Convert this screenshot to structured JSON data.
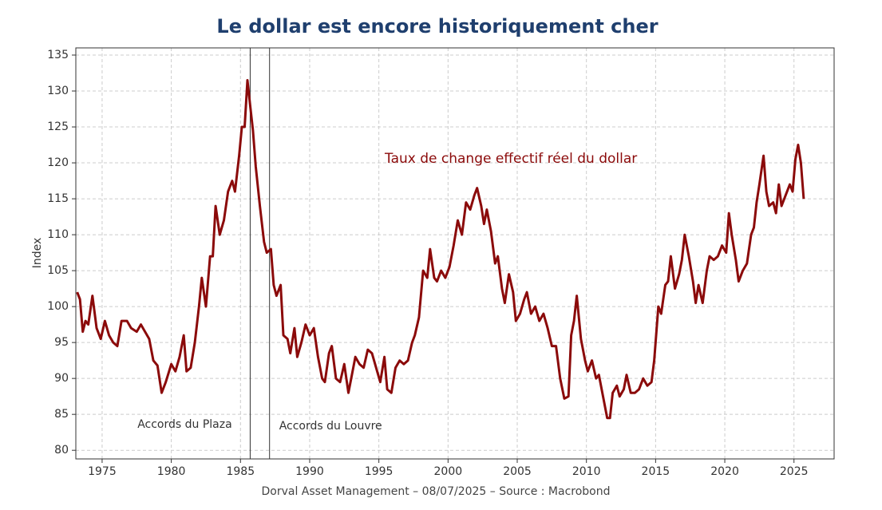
{
  "chart_data": {
    "type": "line",
    "title": "Le dollar est encore historiquement cher",
    "ylabel": "Index",
    "footer": "Dorval Asset Management  – 08/07/2025 –   Source : Macrobond",
    "annotations": [
      {
        "text": "Accords du Plaza",
        "x": 1985.7
      },
      {
        "text": "Accords du Louvre",
        "x": 1987.1
      }
    ],
    "xlim": [
      1973.1,
      2027.9
    ],
    "xticks": [
      1975,
      1980,
      1985,
      1990,
      1995,
      2000,
      2005,
      2010,
      2015,
      2020,
      2025
    ],
    "ylim": [
      78.8,
      136
    ],
    "yticks": [
      80,
      85,
      90,
      95,
      100,
      105,
      110,
      115,
      120,
      125,
      130,
      135
    ],
    "grid": true,
    "series": [
      {
        "name": "Taux de change effectif réel du dollar",
        "color": "#8b0a0a",
        "x": [
          1973.2,
          1973.4,
          1973.6,
          1973.8,
          1974.0,
          1974.3,
          1974.6,
          1974.9,
          1975.2,
          1975.5,
          1975.8,
          1976.1,
          1976.4,
          1976.8,
          1977.1,
          1977.5,
          1977.8,
          1978.1,
          1978.4,
          1978.7,
          1979.0,
          1979.3,
          1979.6,
          1980.0,
          1980.3,
          1980.6,
          1980.9,
          1981.1,
          1981.4,
          1981.7,
          1982.0,
          1982.2,
          1982.5,
          1982.8,
          1983.0,
          1983.2,
          1983.5,
          1983.8,
          1984.1,
          1984.4,
          1984.6,
          1984.9,
          1985.1,
          1985.3,
          1985.5,
          1985.7,
          1985.9,
          1986.1,
          1986.4,
          1986.7,
          1986.9,
          1987.2,
          1987.4,
          1987.6,
          1987.9,
          1988.1,
          1988.4,
          1988.6,
          1988.9,
          1989.1,
          1989.4,
          1989.7,
          1990.0,
          1990.3,
          1990.6,
          1990.9,
          1991.1,
          1991.4,
          1991.6,
          1991.9,
          1992.2,
          1992.5,
          1992.8,
          1993.0,
          1993.3,
          1993.6,
          1993.9,
          1994.2,
          1994.5,
          1994.8,
          1995.1,
          1995.4,
          1995.6,
          1995.9,
          1996.2,
          1996.5,
          1996.8,
          1997.1,
          1997.4,
          1997.6,
          1997.9,
          1998.2,
          1998.5,
          1998.7,
          1999.0,
          1999.2,
          1999.5,
          1999.8,
          2000.1,
          2000.4,
          2000.7,
          2001.0,
          2001.3,
          2001.6,
          2001.9,
          2002.1,
          2002.4,
          2002.6,
          2002.8,
          2003.1,
          2003.4,
          2003.6,
          2003.9,
          2004.1,
          2004.4,
          2004.7,
          2004.9,
          2005.2,
          2005.5,
          2005.7,
          2006.0,
          2006.3,
          2006.6,
          2006.9,
          2007.2,
          2007.5,
          2007.8,
          2008.1,
          2008.4,
          2008.7,
          2008.9,
          2009.1,
          2009.3,
          2009.6,
          2009.9,
          2010.1,
          2010.4,
          2010.7,
          2010.9,
          2011.2,
          2011.5,
          2011.7,
          2011.9,
          2012.2,
          2012.4,
          2012.7,
          2012.9,
          2013.2,
          2013.5,
          2013.8,
          2014.1,
          2014.4,
          2014.7,
          2014.9,
          2015.2,
          2015.4,
          2015.7,
          2015.9,
          2016.1,
          2016.4,
          2016.7,
          2016.9,
          2017.1,
          2017.4,
          2017.7,
          2017.9,
          2018.1,
          2018.4,
          2018.7,
          2018.9,
          2019.2,
          2019.5,
          2019.8,
          2020.1,
          2020.3,
          2020.5,
          2020.8,
          2021.0,
          2021.3,
          2021.6,
          2021.9,
          2022.1,
          2022.3,
          2022.5,
          2022.8,
          2023.0,
          2023.2,
          2023.5,
          2023.7,
          2023.9,
          2024.1,
          2024.4,
          2024.7,
          2024.9,
          2025.1,
          2025.3,
          2025.5,
          2025.7
        ],
        "values": [
          102,
          101,
          96.5,
          98,
          97.5,
          101.5,
          97,
          95.5,
          98,
          96,
          95,
          94.5,
          98,
          98,
          97,
          96.5,
          97.5,
          96.5,
          95.5,
          92.5,
          91.8,
          88,
          89.5,
          92,
          91,
          93,
          96,
          91,
          91.5,
          95,
          100,
          104,
          100,
          107,
          107,
          114,
          110,
          112,
          116,
          117.5,
          116,
          121,
          125,
          125,
          131.5,
          128,
          124.5,
          119.5,
          114,
          109,
          107.5,
          108,
          103,
          101.5,
          103,
          96,
          95.5,
          93.5,
          97,
          93,
          95,
          97.5,
          96,
          97,
          93,
          90,
          89.5,
          93.5,
          94.5,
          90,
          89.5,
          92,
          88,
          90,
          93,
          92,
          91.5,
          94,
          93.5,
          91.5,
          89.5,
          93,
          88.5,
          88,
          91.5,
          92.5,
          92,
          92.5,
          95,
          96,
          98.5,
          105,
          104,
          108,
          104,
          103.5,
          105,
          104,
          105.5,
          108.5,
          112,
          110,
          114.5,
          113.5,
          115.5,
          116.5,
          114,
          111.5,
          113.5,
          110.5,
          106,
          107,
          102.5,
          100.5,
          104.5,
          102,
          98,
          99,
          101,
          102,
          99,
          100,
          98,
          99,
          97,
          94.5,
          94.5,
          90,
          87.2,
          87.5,
          96,
          98,
          101.5,
          95.5,
          92.5,
          91,
          92.5,
          90,
          90.5,
          87.5,
          84.5,
          84.5,
          88,
          89,
          87.5,
          88.5,
          90.5,
          88,
          88,
          88.5,
          90,
          89,
          89.5,
          92.5,
          100,
          99,
          103,
          103.5,
          107,
          102.5,
          104.5,
          106.5,
          110,
          107,
          103.5,
          100.5,
          103,
          100.5,
          105,
          107,
          106.5,
          107,
          108.5,
          107.5,
          113,
          110,
          106.5,
          103.5,
          105,
          106,
          110,
          111,
          114.5,
          117,
          121,
          116,
          114,
          114.5,
          113,
          117,
          114,
          115.5,
          117,
          116,
          120.5,
          122.5,
          120,
          115
        ]
      }
    ]
  }
}
